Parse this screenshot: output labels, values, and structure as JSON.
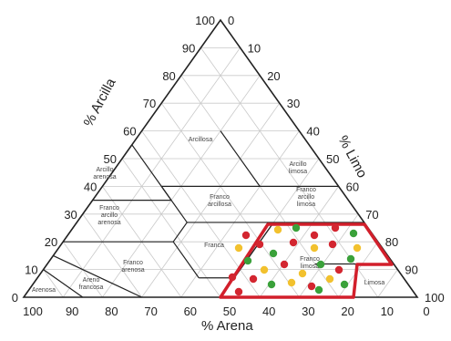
{
  "diagram": {
    "axis_titles": {
      "clay": "% Arcilla",
      "silt": "% Limo",
      "sand": "% Arena"
    },
    "ticks": {
      "clay_left": [
        "0",
        "10",
        "20",
        "30",
        "40",
        "50",
        "60",
        "70",
        "80",
        "90",
        "100"
      ],
      "silt_right": [
        "0",
        "10",
        "20",
        "30",
        "40",
        "50",
        "60",
        "70",
        "80",
        "90",
        "100"
      ],
      "sand_bottom": [
        "100",
        "90",
        "80",
        "70",
        "60",
        "50",
        "40",
        "30",
        "20",
        "10",
        "0"
      ]
    },
    "regions": [
      {
        "id": "arcillosa",
        "label": [
          "Arcillosa"
        ]
      },
      {
        "id": "arcillo-arenosa",
        "label": [
          "Arcillo",
          "arenosa"
        ]
      },
      {
        "id": "arcillo-limosa",
        "label": [
          "Arcillo",
          "limosa"
        ]
      },
      {
        "id": "franco-arcillo-arenosa",
        "label": [
          "Franco",
          "arcillo",
          "arenosa"
        ]
      },
      {
        "id": "franco-arcillosa",
        "label": [
          "Franco",
          "arcillosa"
        ]
      },
      {
        "id": "franco-arcillo-limosa",
        "label": [
          "Franco",
          "arcillo",
          "limosa"
        ]
      },
      {
        "id": "franca",
        "label": [
          "Franca"
        ]
      },
      {
        "id": "franco-arenosa",
        "label": [
          "Franco",
          "arenosa"
        ]
      },
      {
        "id": "franco-limosa",
        "label": [
          "Franco",
          "limosa"
        ]
      },
      {
        "id": "limosa",
        "label": [
          "Limosa"
        ]
      },
      {
        "id": "arenosa",
        "label": [
          "Arenosa"
        ]
      },
      {
        "id": "areno-franca",
        "label": [
          "Areno",
          "francosa"
        ]
      }
    ],
    "highlight_color": "#d21f2b",
    "sample_colors": {
      "red": "#d32630",
      "yellow": "#f2c12e",
      "green": "#3aa13a"
    }
  }
}
